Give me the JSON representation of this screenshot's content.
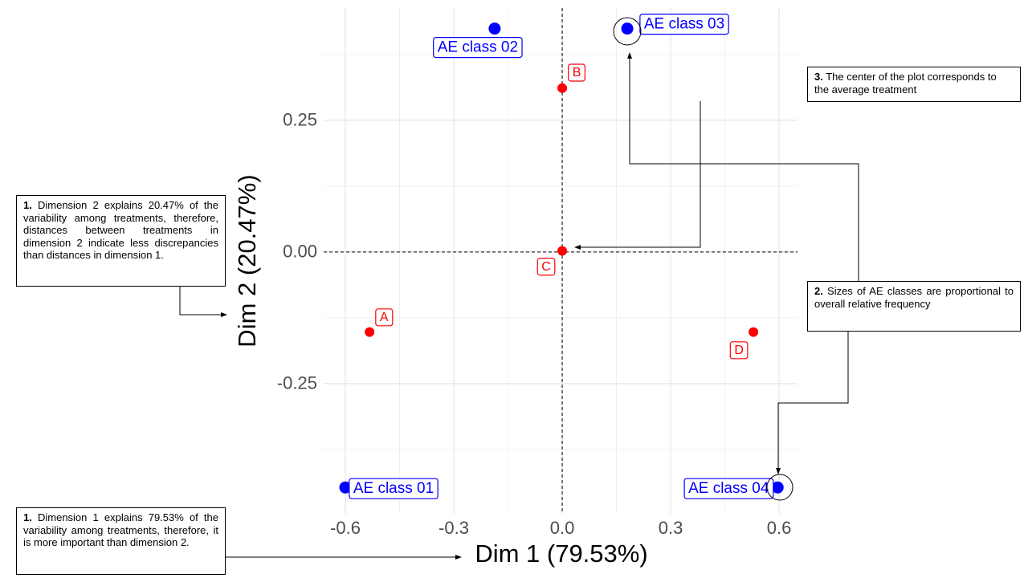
{
  "chart_data": {
    "type": "scatter",
    "x_label": "Dim 1 (79.53%)",
    "y_label": "Dim 2 (20.47%)",
    "xlim": [
      -0.66,
      0.651
    ],
    "ylim": [
      -0.497,
      0.463
    ],
    "xticks": [
      -0.6,
      -0.3,
      {
        "value": 0,
        "label": "0.0"
      },
      0.3,
      0.6
    ],
    "yticks": [
      -0.25,
      {
        "value": 0,
        "label": "0.00"
      },
      0.25
    ],
    "x_minor_ticks": [
      -0.45,
      -0.15,
      0.15,
      0.45
    ],
    "y_minor_ticks": [
      -0.375,
      -0.125,
      0.125,
      0.375
    ],
    "grid": true,
    "reference_lines": true,
    "series": [
      {
        "color": "#0000ff",
        "labels": [
          "AE class 01",
          "AE class 02",
          "AE class 03",
          "AE class 04"
        ],
        "x": [
          -0.6,
          -0.187,
          0.18,
          0.596
        ],
        "y": [
          -0.447,
          0.424,
          0.424,
          -0.447
        ]
      },
      {
        "color": "#ff0000",
        "labels": [
          "A",
          "B",
          "C",
          "D"
        ],
        "x": [
          -0.533,
          0,
          0,
          0.529
        ],
        "y": [
          -0.152,
          0.311,
          0.002,
          -0.152
        ]
      }
    ]
  },
  "annotations": [
    {
      "bold": "1.",
      "text": " Dimension 2 explains 20.47% of the variability among treatments, therefore, distances between treatments in dimension 2 indicate less discrepancies than distances in dimension 1."
    },
    {
      "bold": "1.",
      "text": " Dimension 1 explains 79.53% of the variability among treatments, therefore, it is more important than dimension 2."
    },
    {
      "bold": "3.",
      "text": " The center of the plot corresponds to the average treatment"
    },
    {
      "bold": "2.",
      "text": " Sizes of AE classes are proportional to overall relative frequency"
    }
  ]
}
